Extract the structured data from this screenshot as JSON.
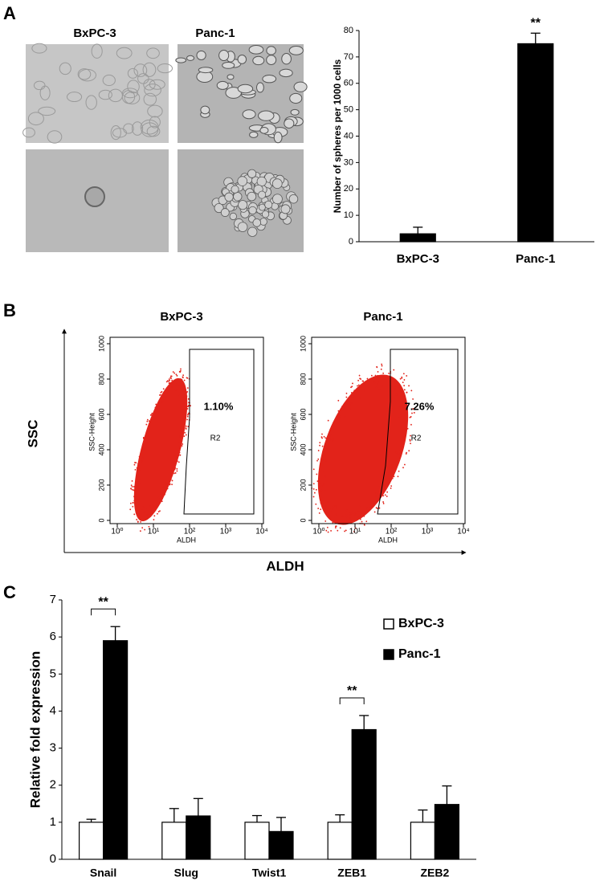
{
  "micrographs": {
    "panel": "A",
    "labels": [
      "BxPC-3",
      "Panc-1"
    ]
  },
  "chart_data": [
    {
      "type": "bar",
      "categories": [
        "BxPC-3",
        "Panc-1"
      ],
      "values": [
        3,
        75
      ],
      "errors": [
        2.5,
        4
      ],
      "color": "#000000",
      "significance": [
        null,
        "**"
      ],
      "ylabel": "Number of spheres per 1000 cells",
      "ylim": [
        0,
        80
      ],
      "yticks": [
        0,
        10,
        20,
        30,
        40,
        50,
        60,
        70,
        80
      ]
    },
    {
      "panel": "B",
      "type": "scatter",
      "ylabel": "SSC",
      "xlabel": "ALDH",
      "plot_ylabel": "SSC-Height",
      "plot_xlabel": "ALDH",
      "xscale": "log",
      "color": "#e2231a",
      "plots": [
        {
          "title": "BxPC-3",
          "gate_percent": "1.10%",
          "gate_name": "R2"
        },
        {
          "title": "Panc-1",
          "gate_percent": "7.26%",
          "gate_name": "R2"
        }
      ],
      "xlim": [
        1,
        10000
      ],
      "xticks": [
        {
          "value": 1,
          "label": "10⁰"
        },
        {
          "value": 10,
          "label": "10¹"
        },
        {
          "value": 100,
          "label": "10²"
        },
        {
          "value": 1000,
          "label": "10³"
        },
        {
          "value": 10000,
          "label": "10⁴"
        }
      ],
      "ylim": [
        0,
        1000
      ],
      "yticks": [
        0,
        200,
        400,
        600,
        800,
        1000
      ]
    },
    {
      "panel": "C",
      "type": "bar",
      "categories": [
        "Snail",
        "Slug",
        "Twist1",
        "ZEB1",
        "ZEB2"
      ],
      "series": [
        {
          "name": "BxPC-3",
          "color": "#ffffff",
          "values": [
            1,
            1,
            1,
            1,
            1
          ],
          "errors": [
            0.08,
            0.37,
            0.18,
            0.2,
            0.33
          ]
        },
        {
          "name": "Panc-1",
          "color": "#000000",
          "values": [
            5.9,
            1.17,
            0.75,
            3.5,
            1.48
          ],
          "errors": [
            0.38,
            0.47,
            0.38,
            0.38,
            0.5
          ]
        }
      ],
      "significance": [
        "**",
        null,
        null,
        "**",
        null
      ],
      "ylabel": "Relative fold expression",
      "ylim": [
        0,
        7
      ],
      "yticks": [
        0,
        1,
        2,
        3,
        4,
        5,
        6,
        7
      ]
    }
  ]
}
